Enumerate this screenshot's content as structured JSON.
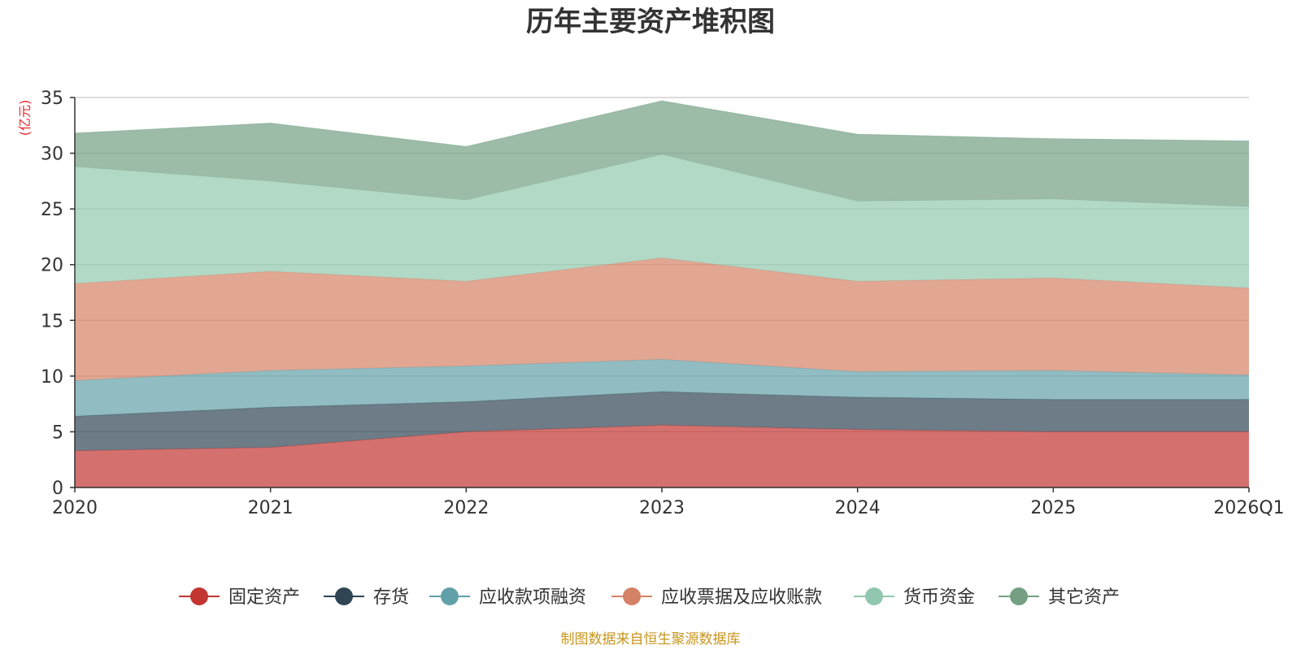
{
  "colors": {
    "source": "#c8961e",
    "unit": "#e8262d",
    "axis": "#333333",
    "grid": "#c8c8c8"
  },
  "chart_data": {
    "type": "area",
    "stacked": true,
    "title": "历年主要资产堆积图",
    "ylabel": "(亿元)",
    "xlabel": "",
    "ylim": [
      0,
      35
    ],
    "yticks": [
      0,
      5,
      10,
      15,
      20,
      25,
      30,
      35
    ],
    "x": [
      "2020",
      "2021",
      "2022",
      "2023",
      "2024",
      "2025",
      "2026Q1"
    ],
    "legend_position": "bottom",
    "grid": true,
    "series": [
      {
        "name": "固定资产",
        "color": "#c23531",
        "values": [
          3.3,
          3.6,
          5.0,
          5.6,
          5.2,
          5.0,
          5.0
        ]
      },
      {
        "name": "存货",
        "color": "#2f4554",
        "values": [
          3.1,
          3.6,
          2.7,
          3.0,
          2.9,
          2.9,
          2.9
        ]
      },
      {
        "name": "应收款项融资",
        "color": "#61a0a8",
        "values": [
          3.2,
          3.3,
          3.2,
          2.9,
          2.3,
          2.6,
          2.2
        ]
      },
      {
        "name": "应收票据及应收账款",
        "color": "#d48265",
        "values": [
          8.7,
          8.9,
          7.6,
          9.1,
          8.1,
          8.3,
          7.8
        ]
      },
      {
        "name": "货币资金",
        "color": "#91c7ae",
        "values": [
          10.5,
          8.1,
          7.3,
          9.3,
          7.2,
          7.1,
          7.3
        ]
      },
      {
        "name": "其它资产",
        "color": "#749f83",
        "values": [
          3.0,
          5.2,
          4.8,
          4.8,
          6.0,
          5.4,
          5.9
        ]
      }
    ]
  },
  "footer": {
    "source": "制图数据来自恒生聚源数据库"
  }
}
